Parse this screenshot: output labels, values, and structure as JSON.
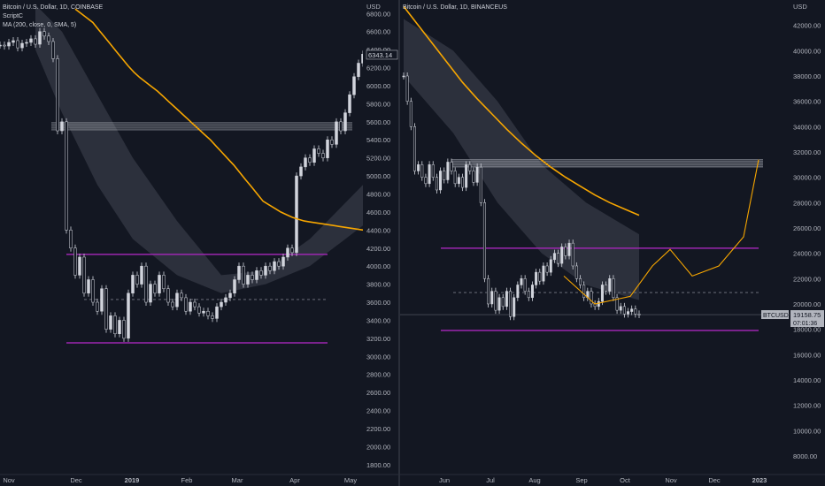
{
  "left": {
    "title": "Bitcoin / U.S. Dollar, 1D, COINBASE",
    "indicator1": "ScriptC",
    "indicator2": "MA (200, close, 0, SMA, 5)",
    "currency": "USD",
    "price_label": "6343.14",
    "colors": {
      "ma": "#f7a600",
      "band": "#363a45",
      "support": "#9c27b0",
      "channel": "#b2b5be"
    },
    "chart_data": {
      "type": "line",
      "ylim": [
        1700,
        6950
      ],
      "yticks": [
        "6800.00",
        "6600.00",
        "6400.00",
        "6200.00",
        "6000.00",
        "5800.00",
        "5600.00",
        "5400.00",
        "5200.00",
        "5000.00",
        "4800.00",
        "4600.00",
        "4400.00",
        "4200.00",
        "4000.00",
        "3800.00",
        "3600.00",
        "3400.00",
        "3200.00",
        "3000.00",
        "2800.00",
        "2600.00",
        "2400.00",
        "2200.00",
        "2000.00",
        "1800.00"
      ],
      "xticks": [
        "Nov",
        "Dec",
        "2019",
        "Feb",
        "Mar",
        "Apr",
        "May"
      ],
      "price": [
        6450,
        6440,
        6480,
        6500,
        6420,
        6470,
        6480,
        6520,
        6460,
        6600,
        6550,
        6490,
        6300,
        5500,
        5600,
        4400,
        4200,
        3900,
        4100,
        3700,
        3850,
        3600,
        3500,
        3750,
        3300,
        3450,
        3250,
        3400,
        3200,
        3700,
        3900,
        3800,
        4000,
        3600,
        3800,
        3700,
        3900,
        3750,
        3600,
        3550,
        3700,
        3650,
        3500,
        3600,
        3550,
        3480,
        3500,
        3450,
        3420,
        3550,
        3600,
        3650,
        3700,
        3850,
        4000,
        3800,
        3900,
        3850,
        3950,
        3900,
        4000,
        3950,
        4050,
        4000,
        4100,
        4200,
        4150,
        5000,
        5100,
        5200,
        5150,
        5300,
        5250,
        5200,
        5400,
        5350,
        5600,
        5500,
        5700,
        5900,
        6100,
        6250,
        6350
      ],
      "ma": [
        6850,
        6800,
        6750,
        6700,
        6620,
        6540,
        6460,
        6380,
        6300,
        6220,
        6150,
        6090,
        6040,
        5990,
        5940,
        5880,
        5820,
        5760,
        5700,
        5640,
        5580,
        5520,
        5460,
        5400,
        5330,
        5260,
        5190,
        5120,
        5040,
        4960,
        4880,
        4800,
        4720,
        4680,
        4640,
        4600,
        4570,
        4540,
        4520,
        4500,
        4490,
        4480,
        4470,
        4460,
        4450,
        4440,
        4430,
        4420,
        4410,
        4400
      ],
      "support_levels": [
        4130,
        3150
      ],
      "channel_level": 5550,
      "dashed_level": 3630
    }
  },
  "right": {
    "title": "Bitcoin / U.S. Dollar, 1D, BINANCEUS",
    "currency": "USD",
    "symbol_label": "BTCUSD",
    "price_label": "19158.75",
    "countdown_label": "07:01:36",
    "colors": {
      "ma": "#f7a600",
      "band": "#363a45",
      "support": "#9c27b0",
      "channel": "#b2b5be"
    },
    "chart_data": {
      "type": "line",
      "ylim": [
        6600,
        44000
      ],
      "yticks": [
        "42000.00",
        "40000.00",
        "38000.00",
        "36000.00",
        "34000.00",
        "32000.00",
        "30000.00",
        "28000.00",
        "26000.00",
        "24000.00",
        "22000.00",
        "20000.00",
        "18000.00",
        "16000.00",
        "14000.00",
        "12000.00",
        "10000.00",
        "8000.00"
      ],
      "xticks": [
        "Jun",
        "Jul",
        "Aug",
        "Sep",
        "Oct",
        "Nov",
        "Dec",
        "2023"
      ],
      "price": [
        38000,
        36000,
        34000,
        30500,
        31000,
        30000,
        29500,
        31000,
        30000,
        29000,
        30500,
        29800,
        31200,
        30500,
        29500,
        30000,
        29200,
        31000,
        30500,
        29600,
        30800,
        28000,
        22000,
        20000,
        21000,
        19500,
        20500,
        19800,
        21000,
        19000,
        20500,
        21500,
        22000,
        21000,
        20500,
        21500,
        22500,
        21800,
        23000,
        22500,
        23500,
        24000,
        23200,
        24500,
        23800,
        24800,
        23000,
        22000,
        21500,
        20500,
        21000,
        20000,
        19800,
        20200,
        21500,
        21000,
        22000,
        20500,
        19500,
        19800,
        19200,
        19400,
        19600,
        19200,
        19158
      ],
      "ma": [
        43500,
        42000,
        40500,
        39000,
        37500,
        36200,
        35000,
        33800,
        32700,
        31700,
        30800,
        30000,
        29300,
        28600,
        28000,
        27500,
        27000
      ],
      "support_levels": [
        24400,
        17900
      ],
      "channel_level": 31100,
      "dashed_level": 20900,
      "current_level": 19158
    }
  }
}
